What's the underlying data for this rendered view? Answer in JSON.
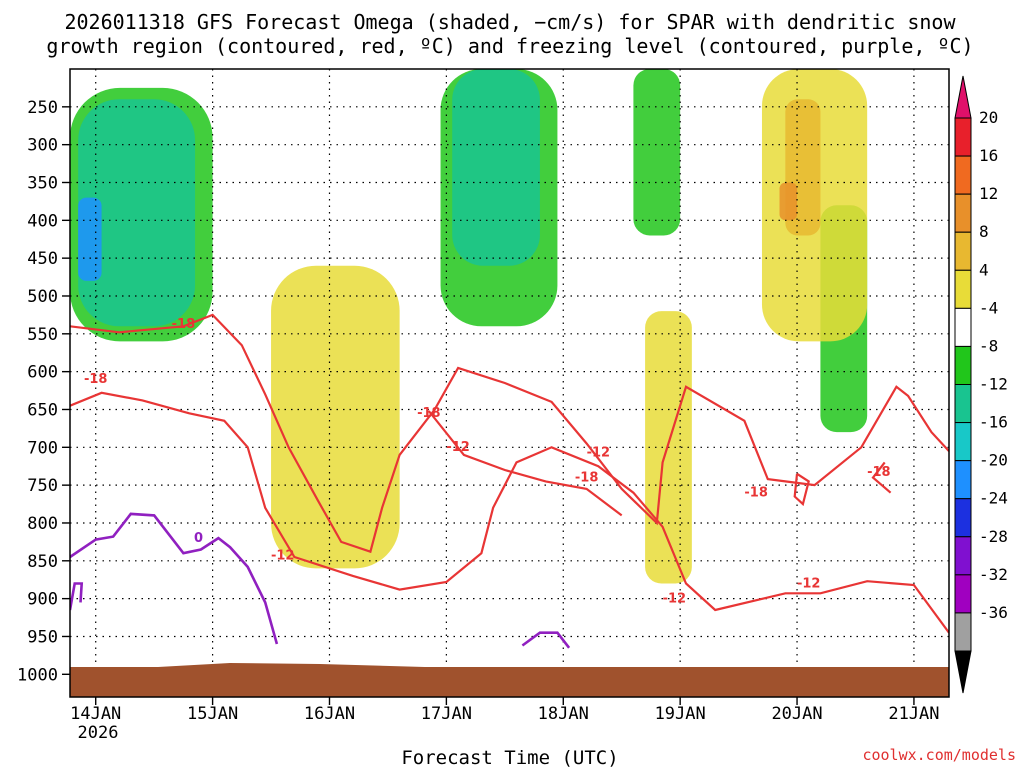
{
  "chart_data": {
    "type": "heatmap",
    "title_line1": "2026011318 GFS Forecast Omega (shaded, −cm/s) for SPAR with dendritic snow",
    "title_line2": "growth region (contoured, red, ºC) and freezing level (contoured, purple, ºC)",
    "xlabel": "Forecast Time (UTC)",
    "ylabel": "",
    "credit": "coolwx.com/models",
    "x_ticks": [
      "14JAN",
      "15JAN",
      "16JAN",
      "17JAN",
      "18JAN",
      "19JAN",
      "20JAN",
      "21JAN"
    ],
    "x_year": "2026",
    "y_ticks": [
      250,
      300,
      350,
      400,
      450,
      500,
      550,
      600,
      650,
      700,
      750,
      800,
      850,
      900,
      950,
      1000
    ],
    "ylim_hpa": [
      200,
      1030
    ],
    "xlim_days": [
      -0.22,
      7.3
    ],
    "colorbar": {
      "labels": [
        "20",
        "16",
        "12",
        "8",
        "4",
        "-4",
        "-8",
        "-12",
        "-16",
        "-20",
        "-24",
        "-28",
        "-32",
        "-36"
      ],
      "colors": [
        "#e8202b",
        "#f06a20",
        "#e8902a",
        "#e8b830",
        "#e8dc38",
        "#ffffff",
        "#21c61b",
        "#19c490",
        "#18c8c8",
        "#1e90ff",
        "#1c30e0",
        "#8010d0",
        "#a000c0",
        "#a0a0a0"
      ],
      "top_arrow_color": "#e0106a",
      "bottom_arrow_color": "#000000"
    },
    "contour_labels": {
      "dgz": [
        "-18",
        "-18",
        "-12",
        "-18",
        "-12",
        "-12",
        "-18",
        "-18",
        "-12",
        "-18",
        "-12"
      ],
      "freezing": [
        "0"
      ]
    },
    "contours": {
      "dgz_minus12": [
        [
          [
            -0.22,
            645
          ],
          [
            0.05,
            628
          ],
          [
            0.4,
            638
          ],
          [
            0.8,
            655
          ],
          [
            1.1,
            665
          ],
          [
            1.3,
            700
          ],
          [
            1.45,
            780
          ],
          [
            1.7,
            845
          ],
          [
            2.2,
            870
          ],
          [
            2.6,
            888
          ],
          [
            3.0,
            878
          ],
          [
            3.3,
            840
          ],
          [
            3.4,
            780
          ],
          [
            3.6,
            720
          ],
          [
            3.9,
            700
          ],
          [
            4.3,
            725
          ],
          [
            4.6,
            760
          ],
          [
            4.85,
            805
          ],
          [
            5.05,
            880
          ],
          [
            5.3,
            915
          ],
          [
            5.9,
            893
          ],
          [
            6.2,
            893
          ],
          [
            6.6,
            877
          ],
          [
            7.0,
            882
          ],
          [
            7.3,
            945
          ]
        ],
        [
          [
            2.85,
            652
          ],
          [
            3.15,
            710
          ],
          [
            3.5,
            730
          ],
          [
            3.85,
            745
          ],
          [
            4.2,
            755
          ],
          [
            4.5,
            790
          ]
        ]
      ],
      "dgz_minus18": [
        [
          [
            -0.22,
            540
          ],
          [
            0.2,
            548
          ],
          [
            0.75,
            540
          ],
          [
            1.0,
            525
          ],
          [
            1.25,
            565
          ],
          [
            1.45,
            630
          ],
          [
            1.65,
            700
          ],
          [
            1.9,
            770
          ],
          [
            2.1,
            825
          ],
          [
            2.35,
            838
          ],
          [
            2.45,
            780
          ],
          [
            2.6,
            710
          ],
          [
            2.9,
            650
          ],
          [
            3.1,
            595
          ],
          [
            3.5,
            615
          ],
          [
            3.9,
            640
          ],
          [
            4.2,
            695
          ],
          [
            4.5,
            755
          ],
          [
            4.8,
            800
          ],
          [
            4.85,
            720
          ],
          [
            5.05,
            620
          ],
          [
            5.55,
            665
          ],
          [
            5.75,
            742
          ],
          [
            5.9,
            745
          ],
          [
            6.15,
            750
          ],
          [
            6.55,
            700
          ],
          [
            6.85,
            620
          ],
          [
            6.95,
            632
          ],
          [
            7.15,
            680
          ],
          [
            7.3,
            705
          ]
        ],
        [
          [
            6.0,
            735
          ],
          [
            6.1,
            745
          ],
          [
            6.05,
            775
          ],
          [
            5.98,
            765
          ],
          [
            6.0,
            735
          ]
        ],
        [
          [
            6.8,
            760
          ],
          [
            6.65,
            740
          ],
          [
            6.75,
            720
          ]
        ]
      ],
      "freezing_0": [
        [
          [
            -0.22,
            845
          ],
          [
            0.0,
            822
          ],
          [
            0.15,
            818
          ],
          [
            0.3,
            788
          ],
          [
            0.5,
            790
          ],
          [
            0.75,
            840
          ],
          [
            0.9,
            835
          ],
          [
            1.05,
            820
          ],
          [
            1.15,
            832
          ],
          [
            1.3,
            858
          ],
          [
            1.45,
            905
          ],
          [
            1.55,
            960
          ]
        ],
        [
          [
            3.65,
            962
          ],
          [
            3.8,
            945
          ],
          [
            3.95,
            945
          ],
          [
            4.05,
            965
          ]
        ],
        [
          [
            -0.22,
            915
          ],
          [
            -0.18,
            880
          ],
          [
            -0.12,
            880
          ],
          [
            -0.13,
            905
          ]
        ]
      ]
    },
    "shading_regions": [
      {
        "band": "-8",
        "x": [
          -0.22,
          1.0
        ],
        "p": [
          225,
          560
        ],
        "note": "upward motion early 14JAN"
      },
      {
        "band": "-12",
        "x": [
          -0.15,
          0.85
        ],
        "p": [
          240,
          540
        ]
      },
      {
        "band": "-20",
        "x": [
          -0.15,
          0.05
        ],
        "p": [
          370,
          480
        ]
      },
      {
        "band": "-8",
        "x": [
          2.95,
          3.95
        ],
        "p": [
          200,
          540
        ],
        "note": "upward motion 17JAN"
      },
      {
        "band": "-12",
        "x": [
          3.05,
          3.8
        ],
        "p": [
          200,
          460
        ]
      },
      {
        "band": "-8",
        "x": [
          4.6,
          5.0
        ],
        "p": [
          200,
          420
        ]
      },
      {
        "band": "-8",
        "x": [
          6.2,
          6.6
        ],
        "p": [
          380,
          680
        ]
      },
      {
        "band": "4",
        "x": [
          5.7,
          6.6
        ],
        "p": [
          200,
          560
        ],
        "note": "subsidence 20JAN"
      },
      {
        "band": "8",
        "x": [
          5.9,
          6.2
        ],
        "p": [
          240,
          420
        ]
      },
      {
        "band": "12",
        "x": [
          5.85,
          6.0
        ],
        "p": [
          350,
          400
        ]
      },
      {
        "band": "4",
        "x": [
          1.5,
          2.6
        ],
        "p": [
          460,
          860
        ]
      },
      {
        "band": "4",
        "x": [
          4.7,
          5.1
        ],
        "p": [
          520,
          880
        ]
      }
    ]
  }
}
